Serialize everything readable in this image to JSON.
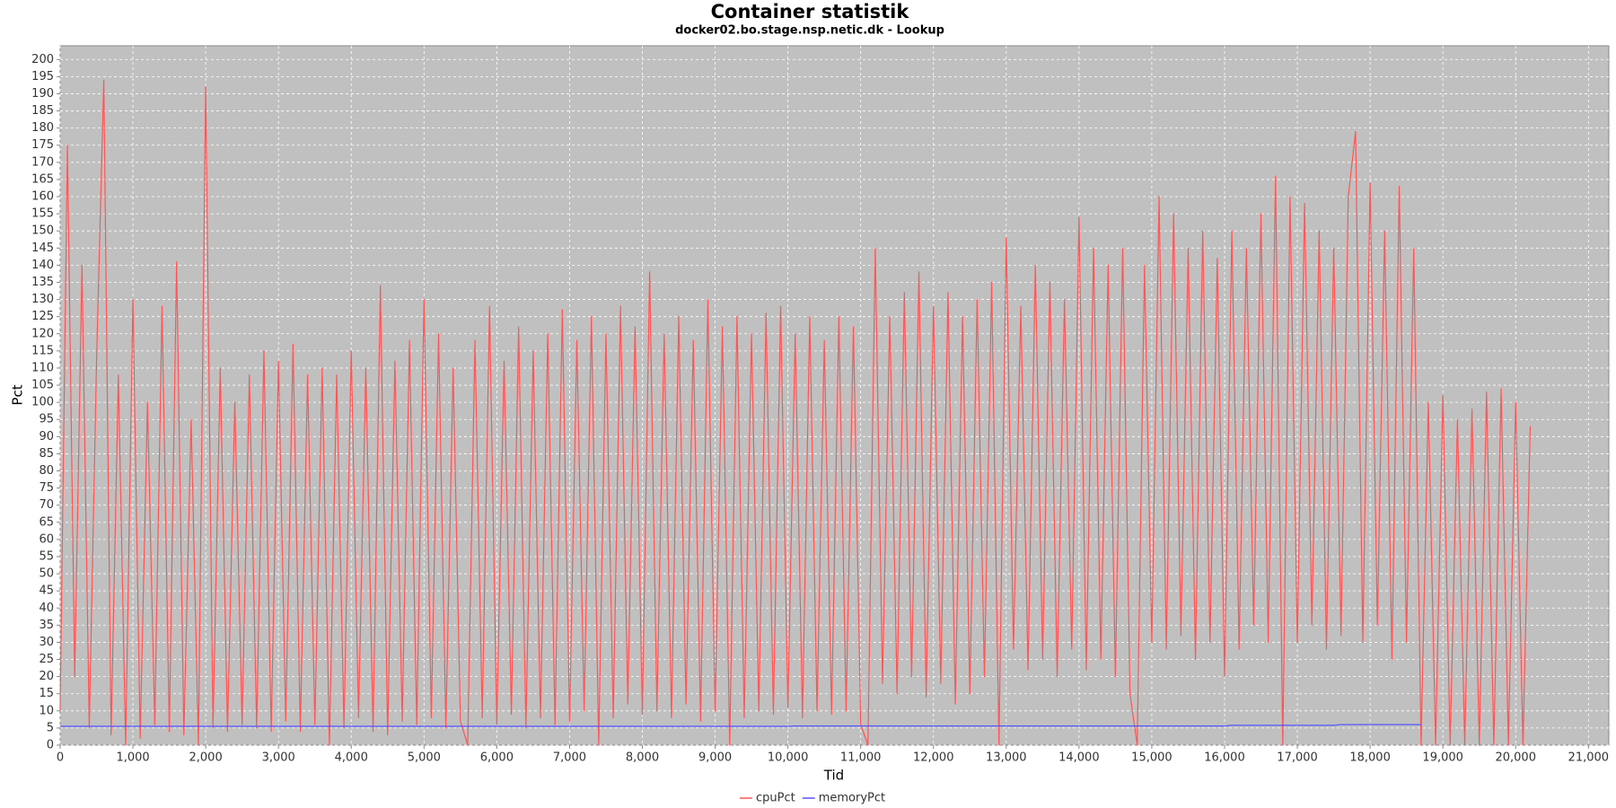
{
  "chart_data": {
    "type": "line",
    "title": "Container statistik",
    "subtitle": "docker02.bo.stage.nsp.netic.dk - Lookup",
    "x_label": "Tid",
    "y_label": "Pct",
    "grid": true,
    "legend": "bottom",
    "xlim": [
      0,
      21280
    ],
    "ylim": [
      0,
      204
    ],
    "xticks": [
      0,
      {
        "value": 1000,
        "label": "1,000"
      },
      {
        "value": 2000,
        "label": "2,000"
      },
      {
        "value": 3000,
        "label": "3,000"
      },
      {
        "value": 4000,
        "label": "4,000"
      },
      {
        "value": 5000,
        "label": "5,000"
      },
      {
        "value": 6000,
        "label": "6,000"
      },
      {
        "value": 7000,
        "label": "7,000"
      },
      {
        "value": 8000,
        "label": "8,000"
      },
      {
        "value": 9000,
        "label": "9,000"
      },
      {
        "value": 10000,
        "label": "10,000"
      },
      {
        "value": 11000,
        "label": "11,000"
      },
      {
        "value": 12000,
        "label": "12,000"
      },
      {
        "value": 13000,
        "label": "13,000"
      },
      {
        "value": 14000,
        "label": "14,000"
      },
      {
        "value": 15000,
        "label": "15,000"
      },
      {
        "value": 16000,
        "label": "16,000"
      },
      {
        "value": 17000,
        "label": "17,000"
      },
      {
        "value": 18000,
        "label": "18,000"
      },
      {
        "value": 19000,
        "label": "19,000"
      },
      {
        "value": 20000,
        "label": "20,000"
      },
      {
        "value": 21000,
        "label": "21,000"
      }
    ],
    "yticks": [
      0,
      5,
      10,
      15,
      20,
      25,
      30,
      35,
      40,
      45,
      50,
      55,
      60,
      65,
      70,
      75,
      80,
      85,
      90,
      95,
      100,
      105,
      110,
      115,
      120,
      125,
      130,
      135,
      140,
      145,
      150,
      155,
      160,
      165,
      170,
      175,
      180,
      185,
      190,
      195,
      200
    ],
    "x": [
      0,
      100,
      200,
      300,
      400,
      500,
      600,
      700,
      800,
      900,
      1000,
      1100,
      1200,
      1300,
      1400,
      1500,
      1600,
      1700,
      1800,
      1900,
      2000,
      2100,
      2200,
      2300,
      2400,
      2500,
      2600,
      2700,
      2800,
      2900,
      3000,
      3100,
      3200,
      3300,
      3400,
      3500,
      3600,
      3700,
      3800,
      3900,
      4000,
      4100,
      4200,
      4300,
      4400,
      4500,
      4600,
      4700,
      4800,
      4900,
      5000,
      5100,
      5200,
      5300,
      5400,
      5500,
      5600,
      5700,
      5800,
      5900,
      6000,
      6100,
      6200,
      6300,
      6400,
      6500,
      6600,
      6700,
      6800,
      6900,
      7000,
      7100,
      7200,
      7300,
      7400,
      7500,
      7600,
      7700,
      7800,
      7900,
      8000,
      8100,
      8200,
      8300,
      8400,
      8500,
      8600,
      8700,
      8800,
      8900,
      9000,
      9100,
      9200,
      9300,
      9400,
      9500,
      9600,
      9700,
      9800,
      9900,
      10000,
      10100,
      10200,
      10300,
      10400,
      10500,
      10600,
      10700,
      10800,
      10900,
      11000,
      11100,
      11200,
      11300,
      11400,
      11500,
      11600,
      11700,
      11800,
      11900,
      12000,
      12100,
      12200,
      12300,
      12400,
      12500,
      12600,
      12700,
      12800,
      12900,
      13000,
      13100,
      13200,
      13300,
      13400,
      13500,
      13600,
      13700,
      13800,
      13900,
      14000,
      14100,
      14200,
      14300,
      14400,
      14500,
      14600,
      14700,
      14800,
      14900,
      15000,
      15100,
      15200,
      15300,
      15400,
      15500,
      15600,
      15700,
      15800,
      15900,
      16000,
      16100,
      16200,
      16300,
      16400,
      16500,
      16600,
      16700,
      16800,
      16900,
      17000,
      17100,
      17200,
      17300,
      17400,
      17500,
      17600,
      17700,
      17800,
      17900,
      18000,
      18100,
      18200,
      18300,
      18400,
      18500,
      18600,
      18700,
      18800,
      18900,
      19000,
      19100,
      19200,
      19300,
      19400,
      19500,
      19600,
      19700,
      19800,
      19900,
      20000,
      20100,
      20200
    ],
    "series": [
      {
        "name": "cpuPct",
        "color": "#ff5555",
        "values": [
          10,
          175,
          20,
          140,
          5,
          112,
          194,
          3,
          108,
          0,
          130,
          2,
          100,
          6,
          128,
          4,
          141,
          3,
          95,
          0,
          192,
          5,
          110,
          4,
          100,
          6,
          108,
          5,
          115,
          4,
          112,
          7,
          117,
          4,
          108,
          6,
          110,
          0,
          108,
          5,
          115,
          8,
          110,
          4,
          134,
          3,
          112,
          7,
          118,
          6,
          130,
          8,
          120,
          5,
          110,
          7,
          0,
          118,
          8,
          128,
          6,
          112,
          9,
          122,
          5,
          115,
          8,
          120,
          6,
          127,
          7,
          118,
          10,
          125,
          0,
          120,
          8,
          128,
          12,
          122,
          9,
          138,
          10,
          120,
          8,
          125,
          12,
          118,
          7,
          130,
          10,
          122,
          0,
          125,
          8,
          120,
          10,
          126,
          9,
          128,
          11,
          120,
          8,
          125,
          10,
          118,
          9,
          125,
          10,
          122,
          6,
          0,
          145,
          18,
          125,
          15,
          132,
          20,
          138,
          14,
          128,
          18,
          132,
          12,
          125,
          15,
          130,
          20,
          135,
          0,
          148,
          28,
          128,
          22,
          140,
          25,
          135,
          20,
          130,
          28,
          154,
          22,
          145,
          25,
          140,
          20,
          145,
          15,
          0,
          140,
          30,
          160,
          28,
          155,
          32,
          145,
          25,
          150,
          30,
          142,
          20,
          150,
          28,
          145,
          35,
          155,
          30,
          166,
          0,
          160,
          30,
          158,
          35,
          150,
          28,
          145,
          32,
          160,
          179,
          30,
          164,
          35,
          150,
          25,
          163,
          30,
          145,
          0,
          100,
          0,
          102,
          0,
          95,
          0,
          98,
          0,
          103,
          0,
          104,
          0,
          100,
          0,
          93
        ]
      },
      {
        "name": "memoryPct",
        "color": "#5555ff",
        "values": [
          5.5,
          5.5,
          5.5,
          5.5,
          5.5,
          5.5,
          5.5,
          5.5,
          5.5,
          5.5,
          5.5,
          5.5,
          5.5,
          5.5,
          5.5,
          5.5,
          5.5,
          5.5,
          5.5,
          5.5,
          5.5,
          5.5,
          5.5,
          5.5,
          5.5,
          5.5,
          5.5,
          5.5,
          5.5,
          5.5,
          5.5,
          5.5,
          5.5,
          5.5,
          5.5,
          5.5,
          5.5,
          5.5,
          5.5,
          5.5,
          5.5,
          5.5,
          5.5,
          5.5,
          5.5,
          5.5,
          5.5,
          5.5,
          5.5,
          5.5,
          5.5,
          5.5,
          5.5,
          5.5,
          5.5,
          5.5,
          5.5,
          5.5,
          5.5,
          5.5,
          5.5,
          5.5,
          5.5,
          5.5,
          5.5,
          5.5,
          5.5,
          5.5,
          5.5,
          5.5,
          5.5,
          5.5,
          5.5,
          5.5,
          5.5,
          5.5,
          5.5,
          5.5,
          5.5,
          5.5,
          5.5,
          5.5,
          5.5,
          5.5,
          5.5,
          5.5,
          5.5,
          5.5,
          5.5,
          5.5,
          5.5,
          5.5,
          5.5,
          5.5,
          5.5,
          5.5,
          5.5,
          5.5,
          5.5,
          5.5,
          5.5,
          5.6,
          5.6,
          5.6,
          5.6,
          5.6,
          5.6,
          5.6,
          5.6,
          5.6,
          5.6,
          5.6,
          5.6,
          5.6,
          5.6,
          5.6,
          5.6,
          5.6,
          5.6,
          5.6,
          5.6,
          5.6,
          5.6,
          5.6,
          5.6,
          5.6,
          5.6,
          5.6,
          5.6,
          5.6,
          5.6,
          5.6,
          5.6,
          5.6,
          5.6,
          5.6,
          5.6,
          5.6,
          5.6,
          5.6,
          5.6,
          5.6,
          5.6,
          5.6,
          5.6,
          5.6,
          5.6,
          5.6,
          5.6,
          5.6,
          5.6,
          5.6,
          5.6,
          5.6,
          5.6,
          5.6,
          5.6,
          5.6,
          5.6,
          5.6,
          5.6,
          5.8,
          5.8,
          5.8,
          5.8,
          5.8,
          5.8,
          5.8,
          5.8,
          5.8,
          5.8,
          5.8,
          5.8,
          5.8,
          5.8,
          5.8,
          6,
          6,
          6,
          6,
          6,
          6,
          6,
          6,
          6,
          6,
          6,
          6,
          null,
          null,
          null,
          null,
          null,
          null,
          null,
          null,
          null,
          null,
          null,
          null,
          null,
          null,
          null
        ]
      }
    ]
  }
}
